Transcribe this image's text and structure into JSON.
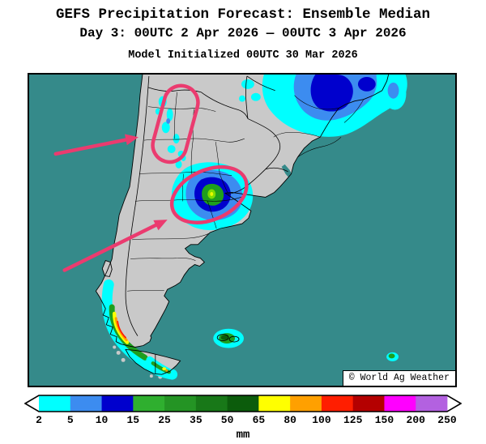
{
  "title": {
    "line1": "GEFS Precipitation Forecast: Ensemble Median",
    "line2": "Day 3: 00UTC 2 Apr 2026 — 00UTC 3 Apr 2026",
    "line3": "Model Initialized 00UTC 30 Mar 2026"
  },
  "map": {
    "attribution": "© World Ag Weather",
    "ocean_color": "#358A8A",
    "land_color": "#C9C9C9",
    "annotation_color": "#EB3B6F",
    "annotations": [
      "northwest-argentina-highlight",
      "central-argentina-highlight",
      "arrow-to-northwest-highlight",
      "arrow-to-central-highlight"
    ]
  },
  "colorbar": {
    "unit": "mm",
    "ticks": [
      "2",
      "5",
      "10",
      "15",
      "25",
      "35",
      "50",
      "65",
      "80",
      "100",
      "125",
      "150",
      "200",
      "250"
    ],
    "segments": [
      {
        "label": "2-5",
        "color": "#00FFFF"
      },
      {
        "label": "5-10",
        "color": "#3C8CF0"
      },
      {
        "label": "10-15",
        "color": "#0000CD"
      },
      {
        "label": "15-25",
        "color": "#2FAF2F"
      },
      {
        "label": "25-35",
        "color": "#249424"
      },
      {
        "label": "35-50",
        "color": "#187818"
      },
      {
        "label": "50-65",
        "color": "#0C5C0C"
      },
      {
        "label": "65-80",
        "color": "#FFFF00"
      },
      {
        "label": "80-100",
        "color": "#FFA000"
      },
      {
        "label": "100-125",
        "color": "#FF1E00"
      },
      {
        "label": "125-150",
        "color": "#B40000"
      },
      {
        "label": "150-200",
        "color": "#FF00FF"
      },
      {
        "label": "200-250",
        "color": "#B361E0"
      }
    ]
  }
}
